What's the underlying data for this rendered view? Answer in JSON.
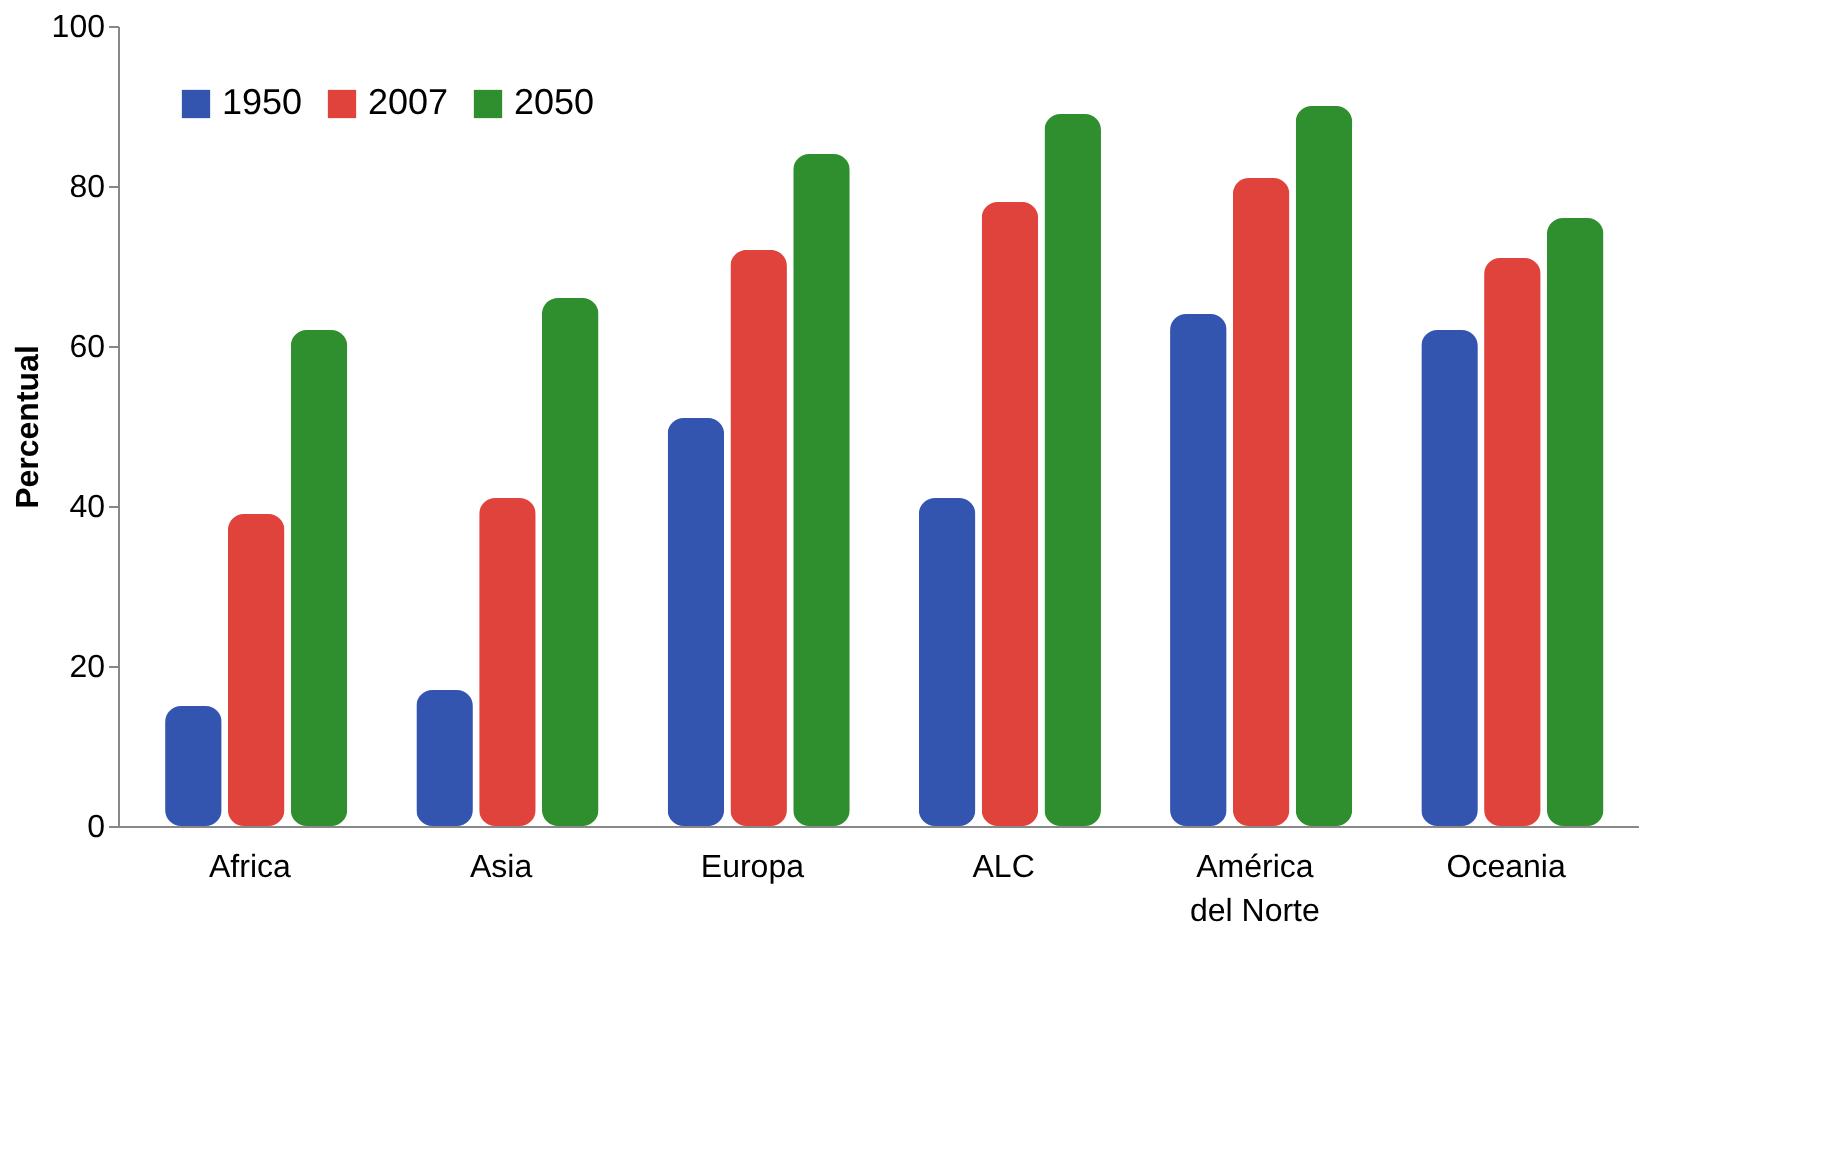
{
  "chart_data": {
    "type": "bar",
    "ylabel": "Percentual",
    "categories": [
      "Africa",
      "Asia",
      "Europa",
      "ALC",
      "América del Norte",
      "Oceania"
    ],
    "series": [
      {
        "name": "1950",
        "color": "#3355b0",
        "values": [
          15,
          17,
          51,
          41,
          64,
          62
        ]
      },
      {
        "name": "2007",
        "color": "#e0433b",
        "values": [
          39,
          41,
          72,
          78,
          81,
          71
        ]
      },
      {
        "name": "2050",
        "color": "#2f8f2f",
        "values": [
          62,
          66,
          84,
          89,
          90,
          76
        ]
      }
    ],
    "ylim": [
      0,
      100
    ],
    "yticks": [
      0,
      20,
      40,
      60,
      80,
      100
    ],
    "grid": false,
    "legend": "top left"
  }
}
